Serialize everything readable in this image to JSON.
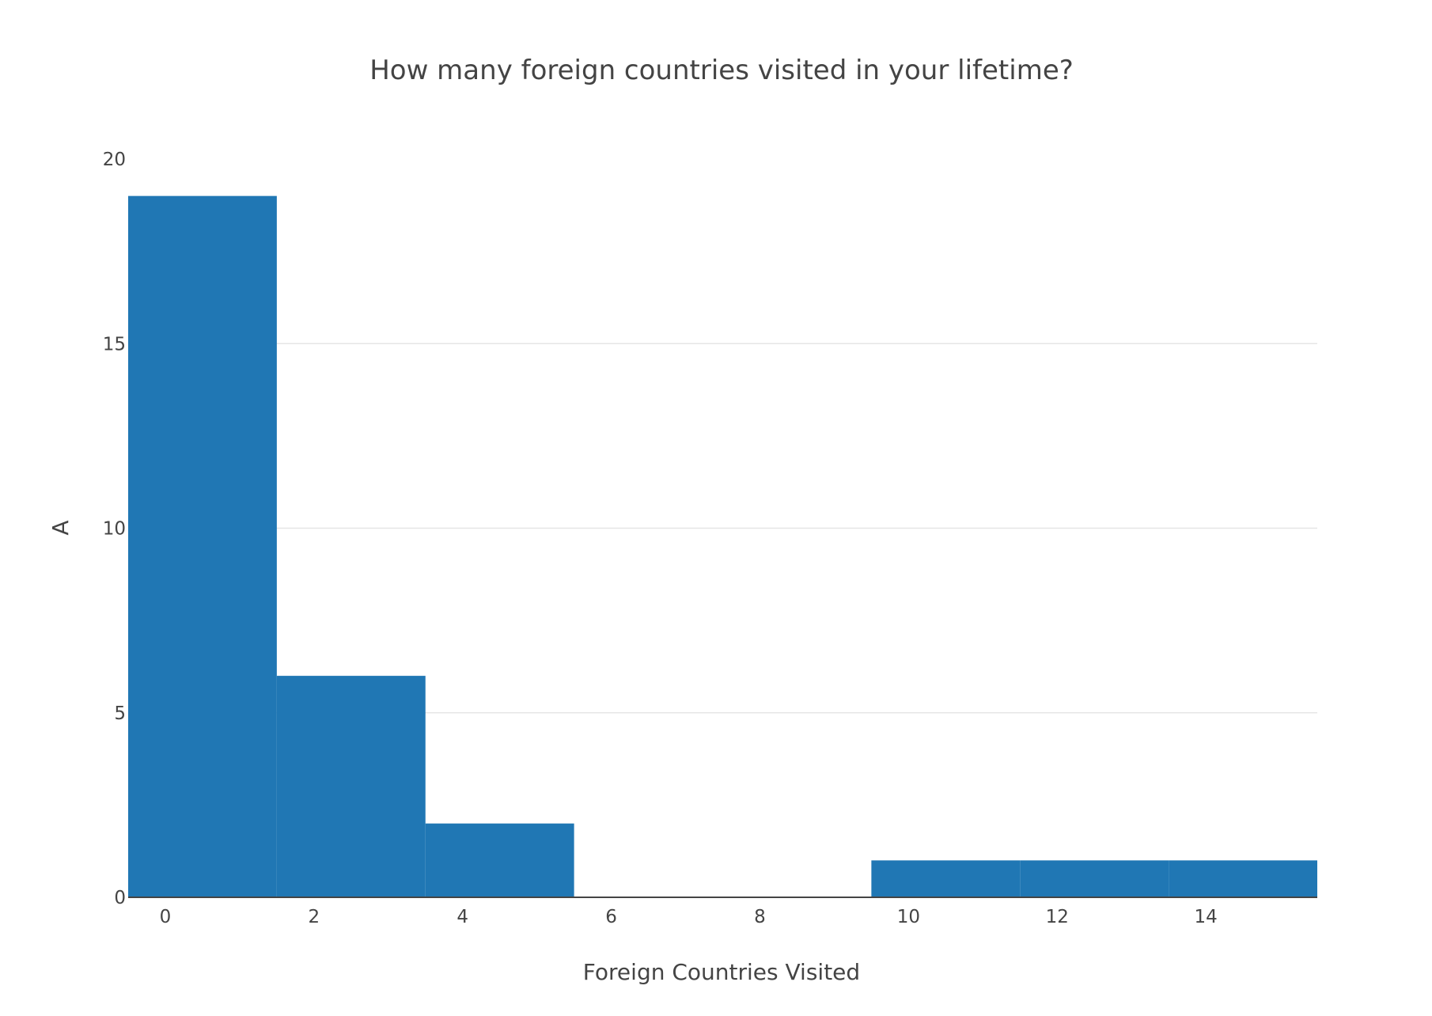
{
  "chart_data": {
    "type": "bar",
    "title": "How many foreign countries visited in your lifetime?",
    "xlabel": "Foreign Countries Visited",
    "ylabel": "A",
    "bin_size": 2,
    "bins": [
      {
        "start": -0.5,
        "end": 1.5,
        "count": 19
      },
      {
        "start": 1.5,
        "end": 3.5,
        "count": 6
      },
      {
        "start": 3.5,
        "end": 5.5,
        "count": 2
      },
      {
        "start": 5.5,
        "end": 7.5,
        "count": 0
      },
      {
        "start": 7.5,
        "end": 9.5,
        "count": 0
      },
      {
        "start": 9.5,
        "end": 11.5,
        "count": 1
      },
      {
        "start": 11.5,
        "end": 13.5,
        "count": 1
      },
      {
        "start": 13.5,
        "end": 15.5,
        "count": 1
      }
    ],
    "xlim": [
      -0.5,
      15.5
    ],
    "ylim": [
      0,
      20
    ],
    "xticks": [
      0,
      2,
      4,
      6,
      8,
      10,
      12,
      14
    ],
    "yticks": [
      0,
      5,
      10,
      15,
      20
    ],
    "bar_color": "#2077b4",
    "grid": true,
    "legend": "none"
  }
}
